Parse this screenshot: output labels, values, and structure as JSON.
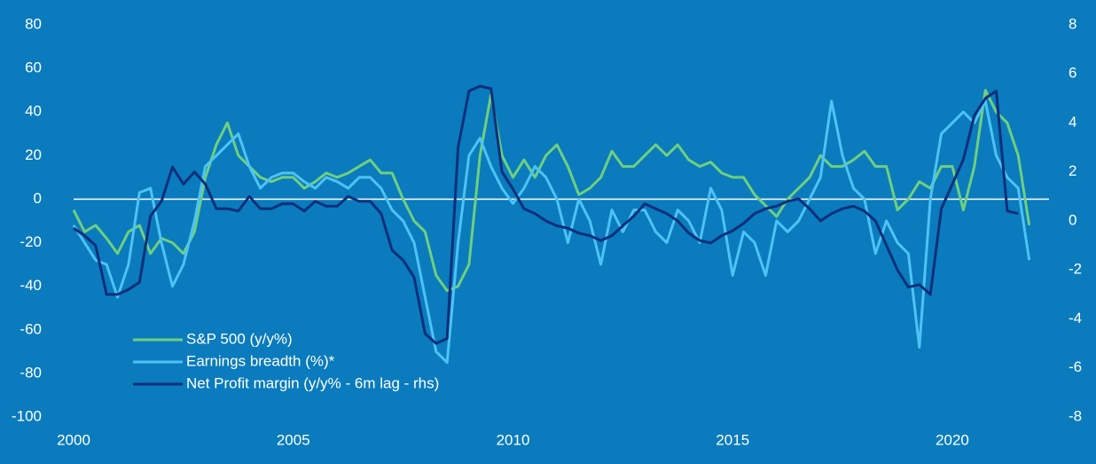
{
  "chart_data": {
    "type": "line",
    "x": [
      2000,
      2000.25,
      2000.5,
      2000.75,
      2001,
      2001.25,
      2001.5,
      2001.75,
      2002,
      2002.25,
      2002.5,
      2002.75,
      2003,
      2003.25,
      2003.5,
      2003.75,
      2004,
      2004.25,
      2004.5,
      2004.75,
      2005,
      2005.25,
      2005.5,
      2005.75,
      2006,
      2006.25,
      2006.5,
      2006.75,
      2007,
      2007.25,
      2007.5,
      2007.75,
      2008,
      2008.25,
      2008.5,
      2008.75,
      2009,
      2009.25,
      2009.5,
      2009.75,
      2010,
      2010.25,
      2010.5,
      2010.75,
      2011,
      2011.25,
      2011.5,
      2011.75,
      2012,
      2012.25,
      2012.5,
      2012.75,
      2013,
      2013.25,
      2013.5,
      2013.75,
      2014,
      2014.25,
      2014.5,
      2014.75,
      2015,
      2015.25,
      2015.5,
      2015.75,
      2016,
      2016.25,
      2016.5,
      2016.75,
      2017,
      2017.25,
      2017.5,
      2017.75,
      2018,
      2018.25,
      2018.5,
      2018.75,
      2019,
      2019.25,
      2019.5,
      2019.75,
      2020,
      2020.25,
      2020.5,
      2020.75,
      2021,
      2021.25,
      2021.5,
      2021.75
    ],
    "series": [
      {
        "name": "S&P 500 (y/y%)",
        "color": "#6fcf7f",
        "values": [
          -5,
          -15,
          -12,
          -18,
          -25,
          -15,
          -12,
          -25,
          -18,
          -20,
          -25,
          -15,
          10,
          25,
          35,
          20,
          15,
          10,
          8,
          10,
          10,
          5,
          8,
          12,
          10,
          12,
          15,
          18,
          12,
          12,
          0,
          -10,
          -15,
          -35,
          -42,
          -40,
          -30,
          20,
          48,
          20,
          10,
          18,
          10,
          20,
          25,
          15,
          2,
          5,
          10,
          22,
          15,
          15,
          20,
          25,
          20,
          25,
          18,
          15,
          17,
          12,
          10,
          10,
          2,
          -3,
          -8,
          0,
          5,
          10,
          20,
          15,
          15,
          18,
          22,
          15,
          15,
          -5,
          0,
          8,
          5,
          15,
          15,
          -5,
          15,
          50,
          40,
          35,
          20,
          -12
        ]
      },
      {
        "name": "Earnings breadth (%)*",
        "color": "#4dc3f5",
        "values": [
          -12,
          -20,
          -28,
          -30,
          -45,
          -30,
          3,
          5,
          -20,
          -40,
          -30,
          -10,
          15,
          20,
          25,
          30,
          15,
          5,
          10,
          12,
          12,
          8,
          5,
          10,
          8,
          5,
          10,
          10,
          5,
          -5,
          -10,
          -20,
          -45,
          -70,
          -75,
          -20,
          20,
          28,
          15,
          5,
          -2,
          5,
          15,
          10,
          0,
          -20,
          0,
          -10,
          -30,
          -5,
          -15,
          -5,
          -5,
          -15,
          -20,
          -5,
          -10,
          -20,
          5,
          -5,
          -35,
          -15,
          -20,
          -35,
          -10,
          -15,
          -10,
          0,
          10,
          45,
          20,
          5,
          0,
          -25,
          -10,
          -20,
          -25,
          -68,
          0,
          30,
          35,
          40,
          35,
          45,
          20,
          10,
          5,
          -28
        ]
      },
      {
        "name": "Net Profit margin (y/y% - 6m lag - rhs)",
        "color": "#0d2f7a",
        "axis": "y2",
        "values": [
          -0.3,
          -0.6,
          -1.0,
          -3.0,
          -3.0,
          -2.8,
          -2.5,
          0.2,
          0.8,
          2.2,
          1.5,
          2.0,
          1.5,
          0.5,
          0.5,
          0.4,
          1.0,
          0.5,
          0.5,
          0.7,
          0.7,
          0.4,
          0.8,
          0.6,
          0.6,
          1.0,
          0.8,
          0.8,
          0.3,
          -1.2,
          -1.6,
          -2.3,
          -4.6,
          -5.0,
          -4.8,
          3.0,
          5.3,
          5.5,
          5.4,
          2.0,
          1.3,
          0.5,
          0.3,
          0.0,
          -0.2,
          -0.3,
          -0.5,
          -0.6,
          -0.8,
          -0.6,
          -0.2,
          0.2,
          0.7,
          0.5,
          0.3,
          0.0,
          -0.5,
          -0.8,
          -0.9,
          -0.6,
          -0.4,
          -0.1,
          0.3,
          0.5,
          0.6,
          0.8,
          0.9,
          0.5,
          0.0,
          0.3,
          0.5,
          0.6,
          0.4,
          0.0,
          -1.0,
          -2.0,
          -2.7,
          -2.6,
          -3.0,
          0.5,
          1.5,
          2.5,
          4.3,
          5.0,
          5.3,
          0.4,
          0.3,
          null
        ]
      }
    ],
    "xlim": [
      2000,
      2022.2
    ],
    "xticks": [
      2000,
      2005,
      2010,
      2015,
      2020
    ],
    "ylim": [
      -100,
      80
    ],
    "yticks": [
      -100,
      -80,
      -60,
      -40,
      -20,
      0,
      20,
      40,
      60,
      80
    ],
    "y2lim": [
      -8,
      8
    ],
    "y2ticks": [
      -8,
      -6,
      -4,
      -2,
      0,
      2,
      4,
      6,
      8
    ],
    "zero_line": true,
    "grid": false,
    "legend": "lower left"
  }
}
